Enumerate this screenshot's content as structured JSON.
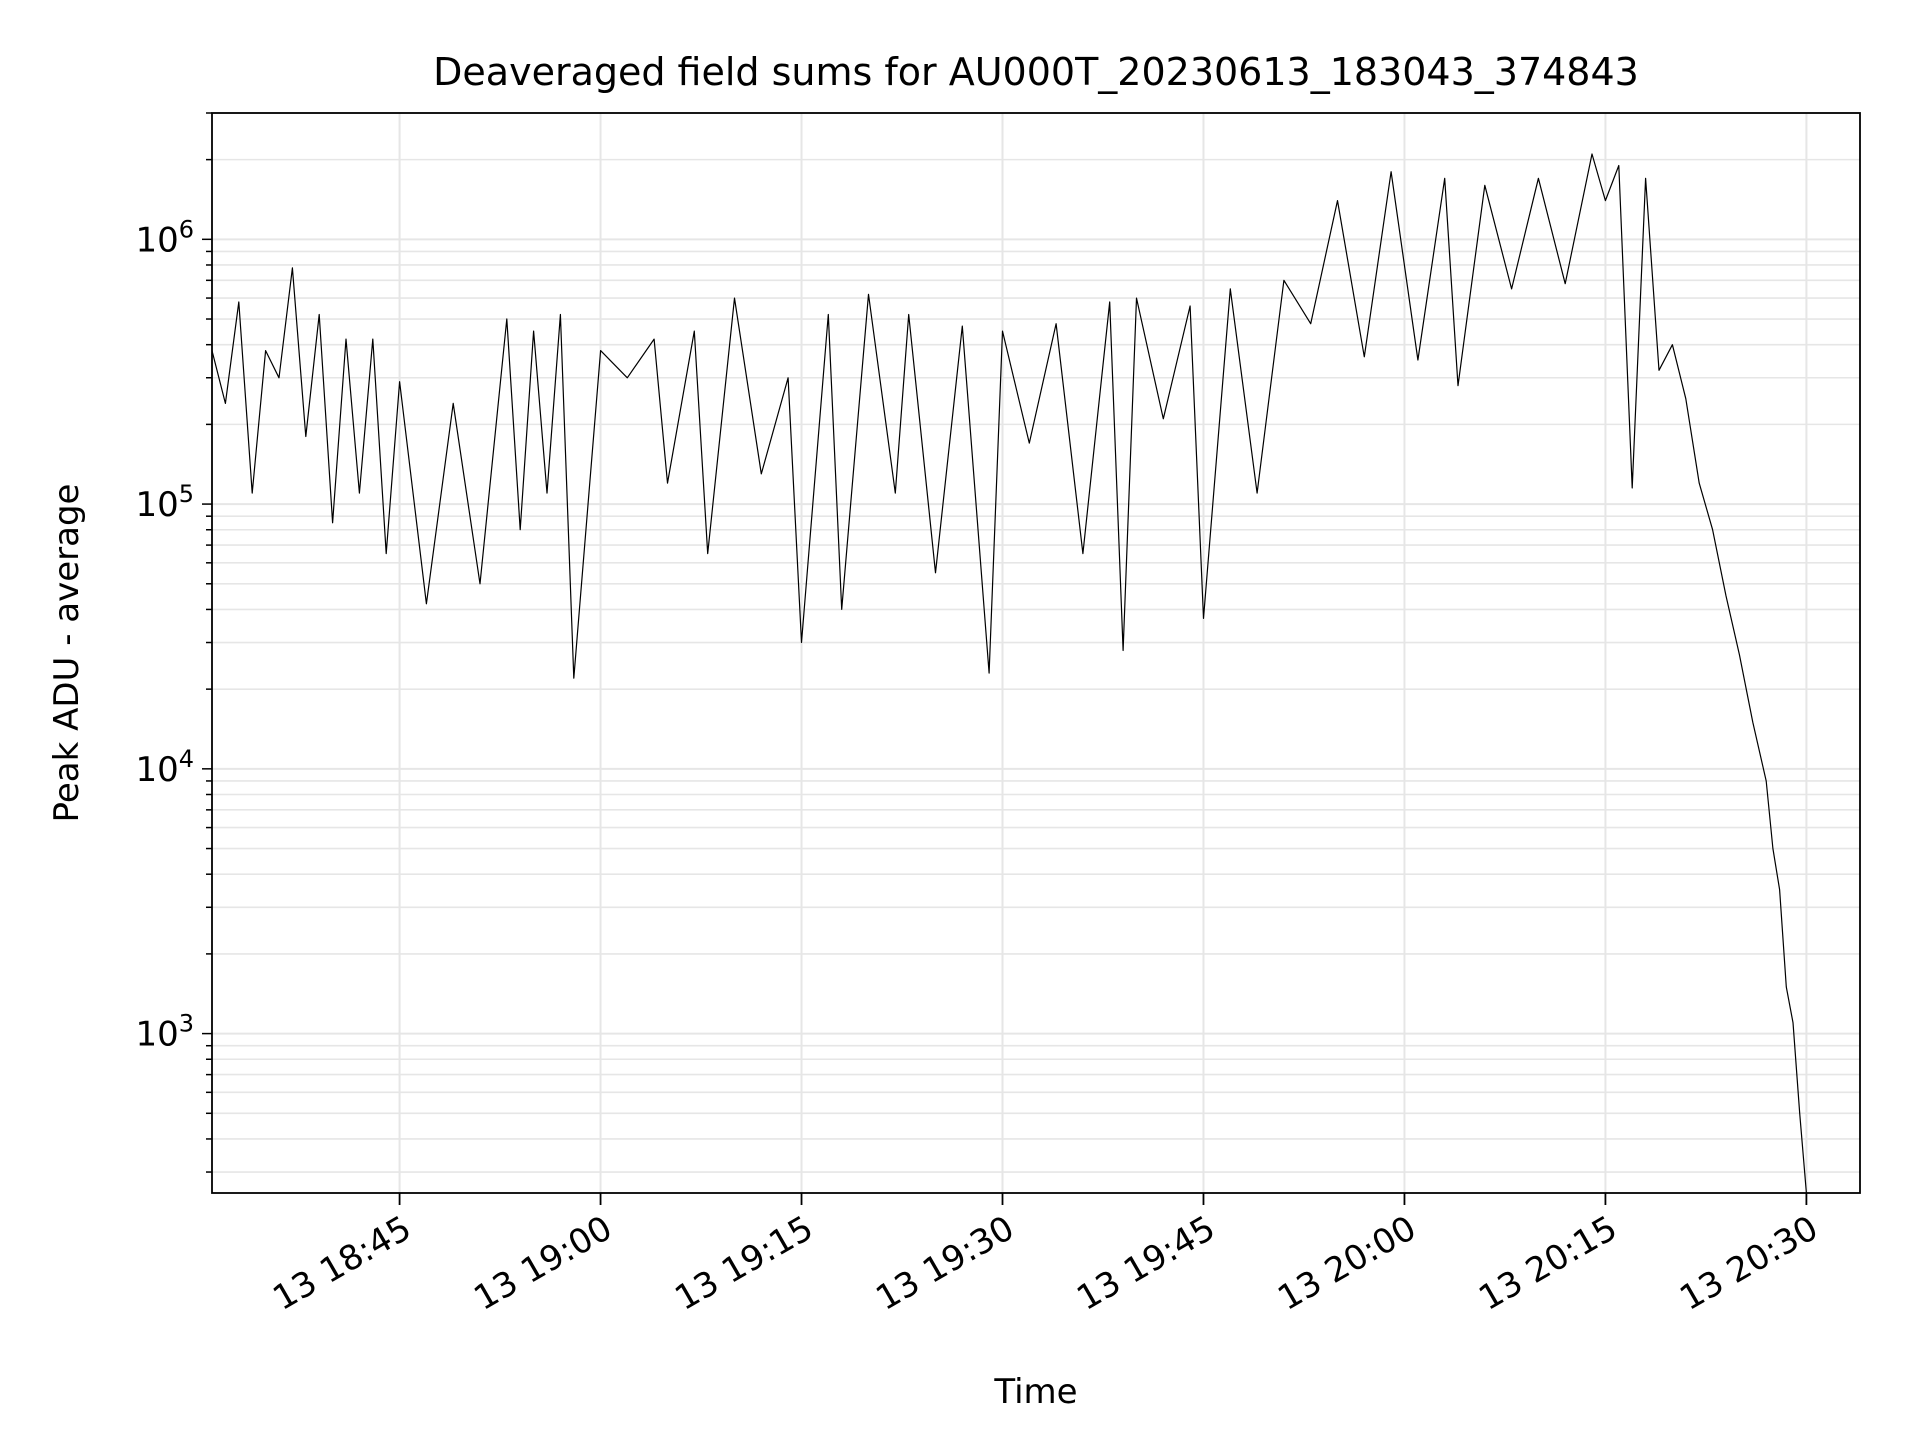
{
  "chart_data": {
    "type": "line",
    "title": "Deaveraged field sums for AU000T_20230613_183043_374843",
    "xlabel": "Time",
    "ylabel": "Peak ADU - average",
    "yscale": "log",
    "xlim": [
      "2023-06-13 18:31:00",
      "2023-06-13 20:34:00"
    ],
    "ylim": [
      250,
      3000000
    ],
    "grid": true,
    "line_color": "#000000",
    "grid_color": "#e6e6e6",
    "x_ticks": [
      {
        "t": "2023-06-13 18:45:00",
        "label": "13 18:45"
      },
      {
        "t": "2023-06-13 19:00:00",
        "label": "13 19:00"
      },
      {
        "t": "2023-06-13 19:15:00",
        "label": "13 19:15"
      },
      {
        "t": "2023-06-13 19:30:00",
        "label": "13 19:30"
      },
      {
        "t": "2023-06-13 19:45:00",
        "label": "13 19:45"
      },
      {
        "t": "2023-06-13 20:00:00",
        "label": "13 20:00"
      },
      {
        "t": "2023-06-13 20:15:00",
        "label": "13 20:15"
      },
      {
        "t": "2023-06-13 20:30:00",
        "label": "13 20:30"
      }
    ],
    "y_ticks": [
      {
        "v": 1000,
        "base": "10",
        "exp": "3"
      },
      {
        "v": 10000,
        "base": "10",
        "exp": "4"
      },
      {
        "v": 100000,
        "base": "10",
        "exp": "5"
      },
      {
        "v": 1000000,
        "base": "10",
        "exp": "6"
      }
    ],
    "series": [
      {
        "x": [
          "2023-06-13 18:31:00",
          "2023-06-13 18:32:00",
          "2023-06-13 18:33:00",
          "2023-06-13 18:34:00",
          "2023-06-13 18:35:00",
          "2023-06-13 18:36:00",
          "2023-06-13 18:37:00",
          "2023-06-13 18:38:00",
          "2023-06-13 18:39:00",
          "2023-06-13 18:40:00",
          "2023-06-13 18:41:00",
          "2023-06-13 18:42:00",
          "2023-06-13 18:43:00",
          "2023-06-13 18:44:00",
          "2023-06-13 18:45:00",
          "2023-06-13 18:47:00",
          "2023-06-13 18:49:00",
          "2023-06-13 18:51:00",
          "2023-06-13 18:53:00",
          "2023-06-13 18:54:00",
          "2023-06-13 18:55:00",
          "2023-06-13 18:56:00",
          "2023-06-13 18:57:00",
          "2023-06-13 18:58:00",
          "2023-06-13 19:00:00",
          "2023-06-13 19:02:00",
          "2023-06-13 19:04:00",
          "2023-06-13 19:05:00",
          "2023-06-13 19:07:00",
          "2023-06-13 19:08:00",
          "2023-06-13 19:10:00",
          "2023-06-13 19:12:00",
          "2023-06-13 19:14:00",
          "2023-06-13 19:15:00",
          "2023-06-13 19:17:00",
          "2023-06-13 19:18:00",
          "2023-06-13 19:20:00",
          "2023-06-13 19:22:00",
          "2023-06-13 19:23:00",
          "2023-06-13 19:25:00",
          "2023-06-13 19:27:00",
          "2023-06-13 19:29:00",
          "2023-06-13 19:30:00",
          "2023-06-13 19:32:00",
          "2023-06-13 19:34:00",
          "2023-06-13 19:36:00",
          "2023-06-13 19:38:00",
          "2023-06-13 19:39:00",
          "2023-06-13 19:40:00",
          "2023-06-13 19:42:00",
          "2023-06-13 19:44:00",
          "2023-06-13 19:45:00",
          "2023-06-13 19:47:00",
          "2023-06-13 19:49:00",
          "2023-06-13 19:51:00",
          "2023-06-13 19:53:00",
          "2023-06-13 19:55:00",
          "2023-06-13 19:57:00",
          "2023-06-13 19:59:00",
          "2023-06-13 20:01:00",
          "2023-06-13 20:03:00",
          "2023-06-13 20:04:00",
          "2023-06-13 20:06:00",
          "2023-06-13 20:08:00",
          "2023-06-13 20:10:00",
          "2023-06-13 20:12:00",
          "2023-06-13 20:14:00",
          "2023-06-13 20:15:00",
          "2023-06-13 20:16:00",
          "2023-06-13 20:17:00",
          "2023-06-13 20:18:00",
          "2023-06-13 20:19:00",
          "2023-06-13 20:20:00",
          "2023-06-13 20:21:00",
          "2023-06-13 20:22:00",
          "2023-06-13 20:23:00",
          "2023-06-13 20:24:00",
          "2023-06-13 20:25:00",
          "2023-06-13 20:26:00",
          "2023-06-13 20:27:00",
          "2023-06-13 20:27:30",
          "2023-06-13 20:28:00",
          "2023-06-13 20:28:30",
          "2023-06-13 20:29:00",
          "2023-06-13 20:29:30",
          "2023-06-13 20:30:00"
        ],
        "values": [
          380000,
          240000,
          580000,
          110000,
          380000,
          300000,
          780000,
          180000,
          520000,
          85000,
          420000,
          110000,
          420000,
          65000,
          290000,
          42000,
          240000,
          50000,
          500000,
          80000,
          450000,
          110000,
          520000,
          22000,
          380000,
          300000,
          420000,
          120000,
          450000,
          65000,
          600000,
          130000,
          300000,
          30000,
          520000,
          40000,
          620000,
          110000,
          520000,
          55000,
          470000,
          23000,
          450000,
          170000,
          480000,
          65000,
          580000,
          28000,
          600000,
          210000,
          560000,
          37000,
          650000,
          110000,
          700000,
          480000,
          1400000,
          360000,
          1800000,
          350000,
          1700000,
          280000,
          1600000,
          650000,
          1700000,
          680000,
          2100000,
          1400000,
          1900000,
          115000,
          1700000,
          320000,
          400000,
          250000,
          120000,
          80000,
          45000,
          27000,
          15000,
          9000,
          5000,
          3500,
          1500,
          1100,
          500,
          250
        ]
      }
    ]
  }
}
